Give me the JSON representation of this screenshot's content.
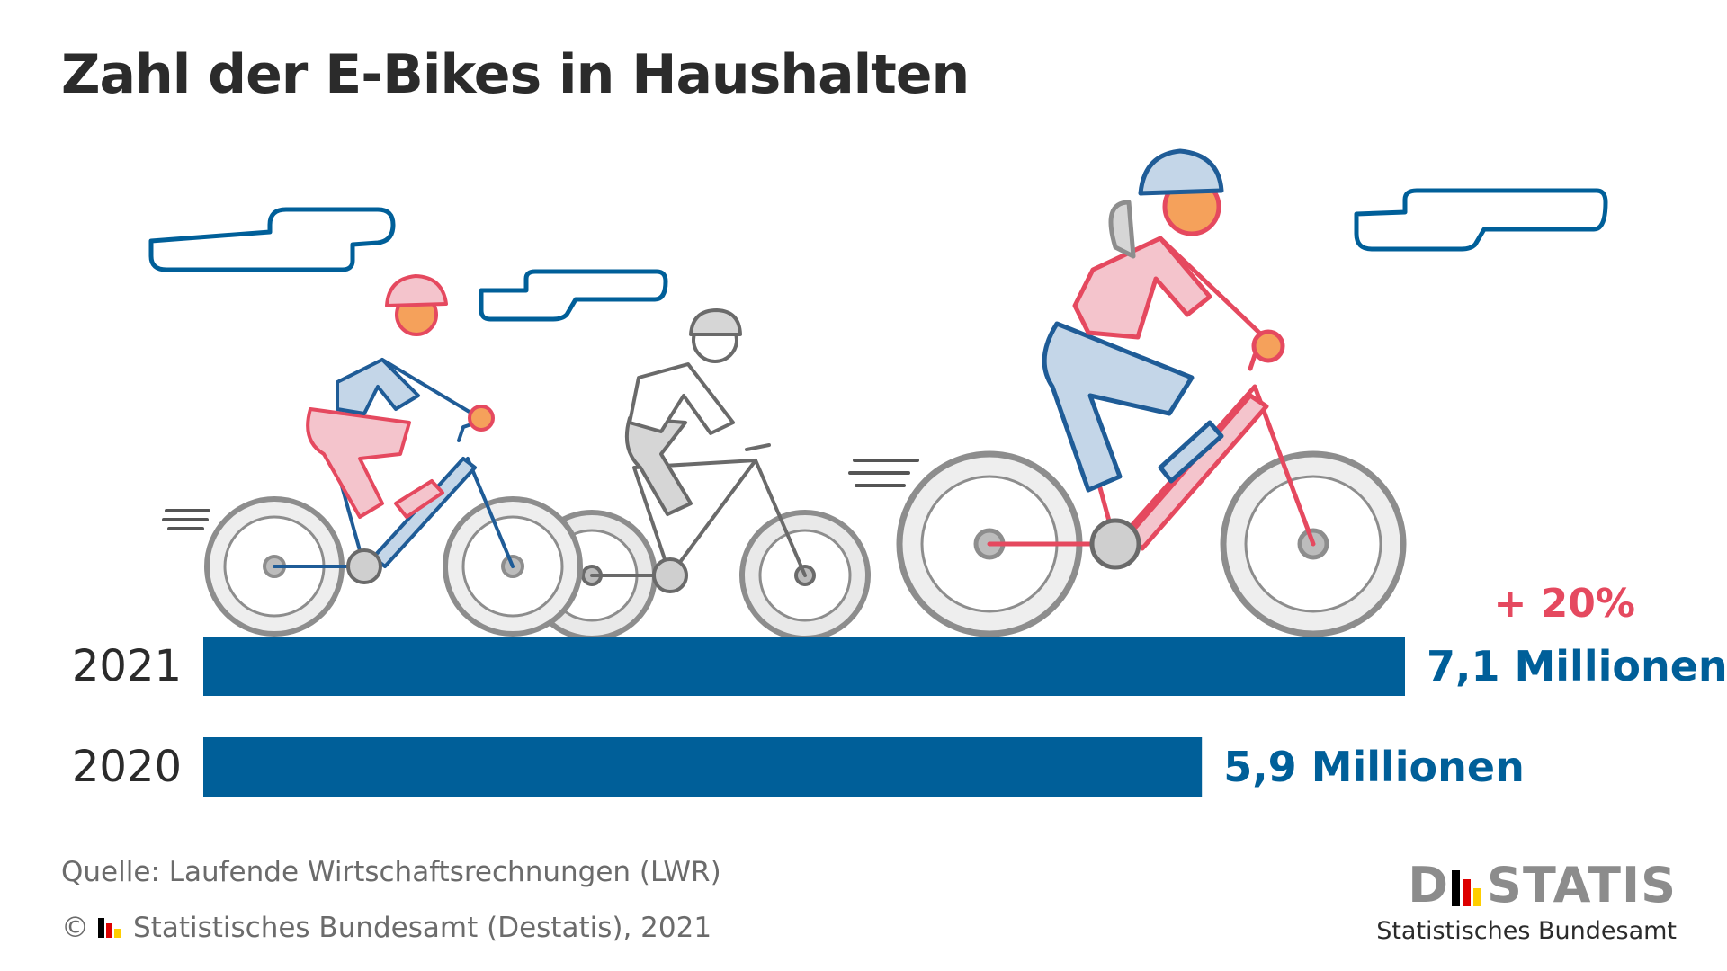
{
  "title": "Zahl der E-Bikes in Haushalten",
  "chart_data": {
    "type": "bar",
    "orientation": "horizontal",
    "categories": [
      "2021",
      "2020"
    ],
    "values": [
      7.1,
      5.9
    ],
    "value_labels": [
      "7,1 Millionen",
      "5,9 Millionen"
    ],
    "annotation": "+ 20%",
    "xlim": [
      0,
      7.1
    ]
  },
  "colors": {
    "bar": "#005f99",
    "annotation": "#e5495f",
    "value_label": "#005f99",
    "cloud": "#005f99",
    "rider_pink": "#f4c4cc",
    "rider_blue": "#c4d6e8",
    "rider_grey": "#d8d8d8",
    "wheel": "#9a9a9a"
  },
  "source": "Quelle: Laufende Wirtschaftsrechnungen (LWR)",
  "copyright": {
    "symbol": "©",
    "text": "Statistisches Bundesamt (Destatis), 2021"
  },
  "logo": {
    "part1": "D",
    "part2": "STATIS",
    "subtitle": "Statistisches Bundesamt",
    "flag_colors": [
      "#000000",
      "#dd0000",
      "#ffce00"
    ]
  }
}
